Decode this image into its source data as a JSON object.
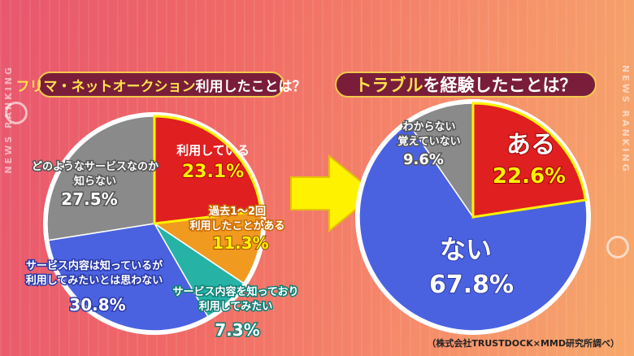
{
  "banners": {
    "left_part1": "フリマ・ネットオークション",
    "left_part2": " 利用したことは？",
    "right_part1": "トラブル",
    "right_part2": "を経験したことは？"
  },
  "side_text": "NEWS RANKING",
  "credit": "（株式会社TRUSTDOCK×MMD研究所調べ）",
  "colors": {
    "red": "#e01f21",
    "orange": "#f09a1f",
    "teal": "#26b3a6",
    "blue": "#4b62e0",
    "gray": "#8a8a8a",
    "arrow": "#fff200"
  },
  "chart_data": [
    {
      "type": "pie",
      "title": "フリマ・ネットオークション 利用したことは？",
      "slices": [
        {
          "label": "利用している",
          "value": 23.1,
          "value_text": "23.1%",
          "color": "#e01f21"
        },
        {
          "label": "過去1〜2回\n利用したことがある",
          "value": 11.3,
          "value_text": "11.3%",
          "color": "#f09a1f"
        },
        {
          "label": "サービス内容を知っており\n利用してみたい",
          "value": 7.3,
          "value_text": "7.3%",
          "color": "#26b3a6"
        },
        {
          "label": "サービス内容は知っているが\n利用してみたいとは思わない",
          "value": 30.8,
          "value_text": "30.8%",
          "color": "#4b62e0"
        },
        {
          "label": "どのようなサービスなのか\n知らない",
          "value": 27.5,
          "value_text": "27.5%",
          "color": "#8a8a8a"
        }
      ]
    },
    {
      "type": "pie",
      "title": "トラブルを経験したことは？",
      "slices": [
        {
          "label": "ある",
          "value": 22.6,
          "value_text": "22.6%",
          "color": "#e01f21"
        },
        {
          "label": "ない",
          "value": 67.8,
          "value_text": "67.8%",
          "color": "#4b62e0"
        },
        {
          "label": "わからない\n覚えていない",
          "value": 9.6,
          "value_text": "9.6%",
          "color": "#8a8a8a"
        }
      ]
    }
  ]
}
